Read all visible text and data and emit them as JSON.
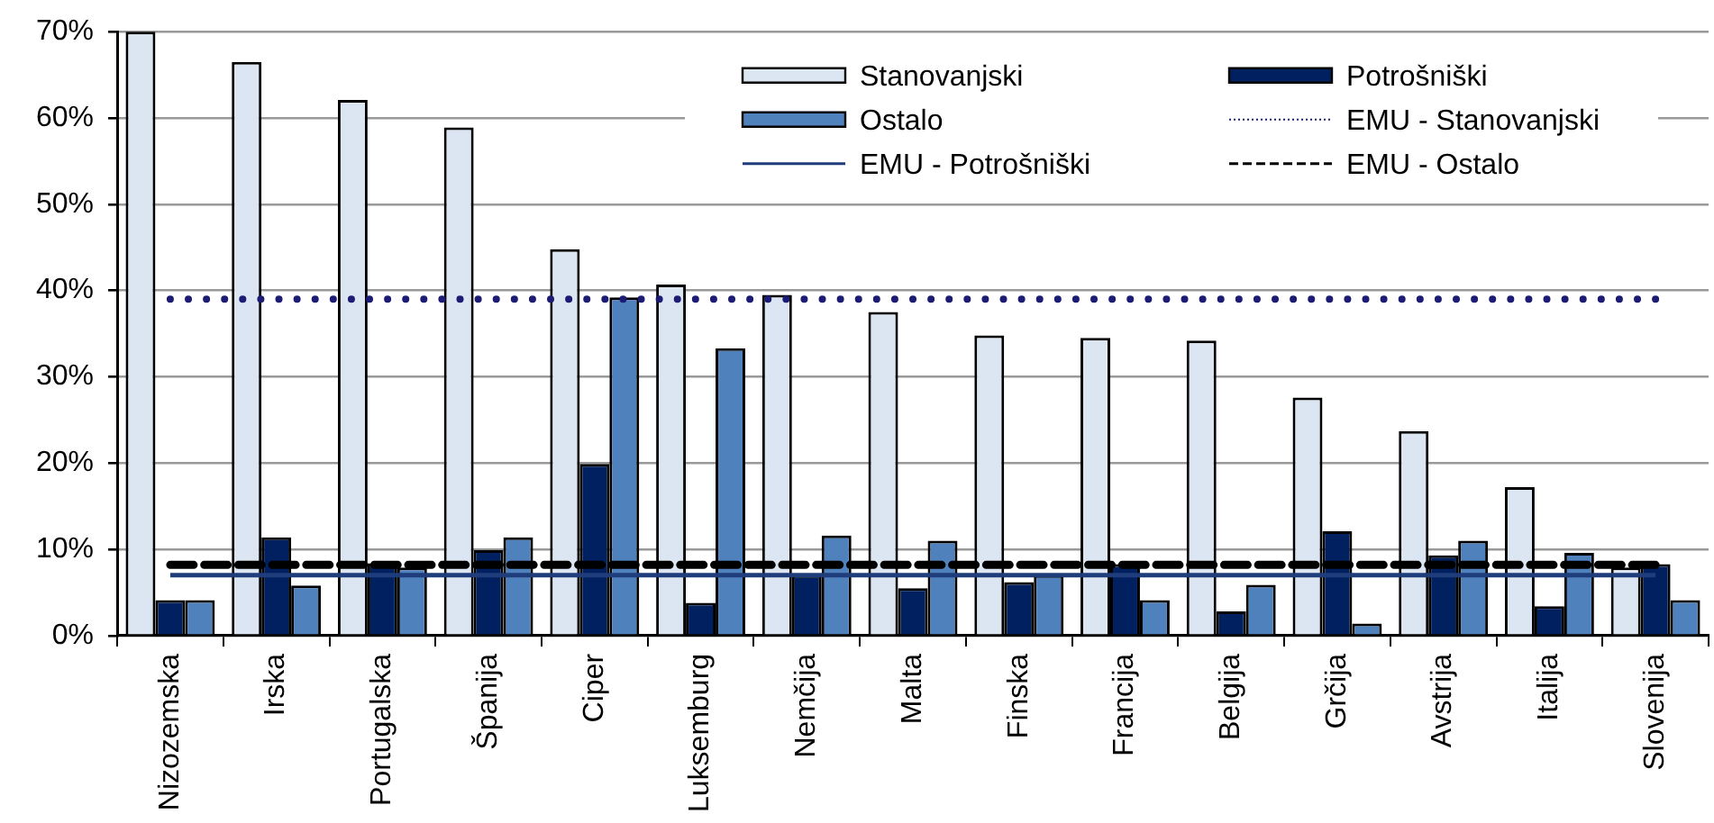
{
  "chart_data": {
    "type": "bar",
    "categories": [
      "Nizozemska",
      "Irska",
      "Portugalska",
      "Španija",
      "Ciper",
      "Luksemburg",
      "Nemčija",
      "Malta",
      "Finska",
      "Francija",
      "Belgija",
      "Grčija",
      "Avstrija",
      "Italija",
      "Slovenija"
    ],
    "series": [
      {
        "name": "Stanovanjski",
        "color": "#dce6f2",
        "values": [
          70,
          66.5,
          62.1,
          58.9,
          44.8,
          40.7,
          39.5,
          37.5,
          34.8,
          34.5,
          34.2,
          27.6,
          23.7,
          17.2,
          7.9
        ]
      },
      {
        "name": "Potrošniški",
        "color": "#002060",
        "values": [
          4.1,
          11.4,
          8.4,
          9.9,
          19.9,
          3.8,
          7.0,
          5.5,
          6.2,
          8.3,
          2.8,
          12.1,
          9.3,
          3.4,
          8.3
        ]
      },
      {
        "name": "Ostalo",
        "color": "#4f81bd",
        "values": [
          4.1,
          5.8,
          7.9,
          11.4,
          39.2,
          33.3,
          11.6,
          11.0,
          7.0,
          4.1,
          5.9,
          1.4,
          11.0,
          9.6,
          4.1
        ]
      },
      {
        "name": "EMU - Stanovanjski",
        "type": "line",
        "line_style": "dotted",
        "color": "#1c1c74",
        "values": [
          39,
          39,
          39,
          39,
          39,
          39,
          39,
          39,
          39,
          39,
          39,
          39,
          39,
          39,
          39
        ]
      },
      {
        "name": "EMU - Potrošniški",
        "type": "line",
        "line_style": "solid",
        "color": "#1f3d7a",
        "values": [
          7,
          7,
          7,
          7,
          7,
          7,
          7,
          7,
          7,
          7,
          7,
          7,
          7,
          7,
          7
        ]
      },
      {
        "name": "EMU - Ostalo",
        "type": "line",
        "line_style": "dashed",
        "color": "#000000",
        "values": [
          8.2,
          8.2,
          8.2,
          8.2,
          8.2,
          8.2,
          8.2,
          8.2,
          8.2,
          8.2,
          8.2,
          8.2,
          8.2,
          8.2,
          8.2
        ]
      }
    ],
    "ylim": [
      0,
      70
    ],
    "yticks": [
      {
        "value": 0,
        "label": "0%"
      },
      {
        "value": 10,
        "label": "10%"
      },
      {
        "value": 20,
        "label": "20%"
      },
      {
        "value": 30,
        "label": "30%"
      },
      {
        "value": 40,
        "label": "40%"
      },
      {
        "value": 50,
        "label": "50%"
      },
      {
        "value": 60,
        "label": "60%"
      },
      {
        "value": 70,
        "label": "70%"
      }
    ],
    "grid": "y",
    "legend": "top right",
    "marker": "none"
  }
}
